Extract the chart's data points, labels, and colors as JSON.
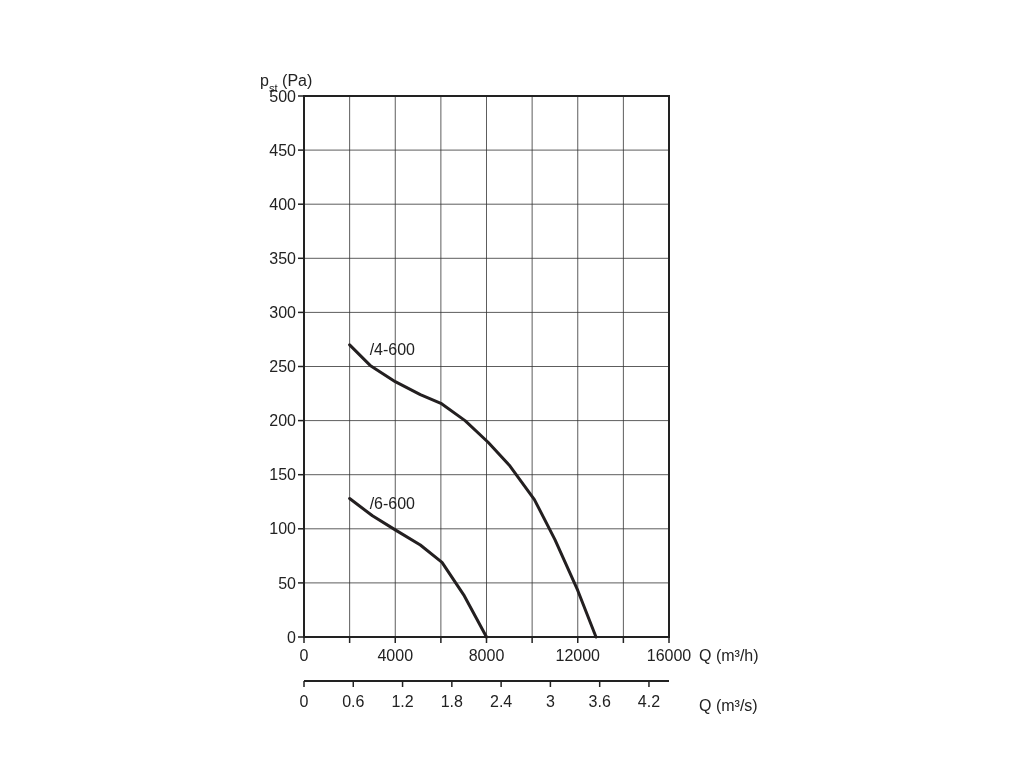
{
  "chart_data": {
    "type": "line",
    "ylabel": "p$_{st}$ (Pa)",
    "xlabel": "Q (m³/h)",
    "x2label": "Q (m³/s)",
    "xlim": [
      0,
      16000
    ],
    "xticks": [
      0,
      {
        "value": 2000,
        "label": null
      },
      4000,
      {
        "value": 6000,
        "label": null
      },
      8000,
      {
        "value": 10000,
        "label": null
      },
      12000,
      {
        "value": 14000,
        "label": null
      },
      16000
    ],
    "x2lim": [
      0,
      4.444
    ],
    "x2ticks": [
      0,
      0.6,
      1.2,
      1.8,
      2.4,
      3,
      3.6,
      4.2
    ],
    "ylim": [
      0,
      500
    ],
    "yticks": [
      0,
      50,
      100,
      150,
      200,
      250,
      300,
      350,
      400,
      450,
      500
    ],
    "grid": true,
    "line_style": "solid",
    "marker": "none",
    "series": [
      {
        "name": "/4-600",
        "color": "#231f20",
        "x": [
          2000,
          2900,
          4000,
          5100,
          6000,
          7060,
          8070,
          9030,
          10100,
          11000,
          12000,
          12800
        ],
        "values": [
          270,
          251,
          236,
          224,
          216,
          200,
          180,
          158,
          127,
          90,
          43,
          0
        ]
      },
      {
        "name": "/6-600",
        "color": "#231f20",
        "x": [
          2000,
          3000,
          4000,
          5100,
          6050,
          7000,
          8000
        ],
        "values": [
          128,
          112,
          99,
          85,
          69,
          39,
          0
        ]
      }
    ]
  }
}
